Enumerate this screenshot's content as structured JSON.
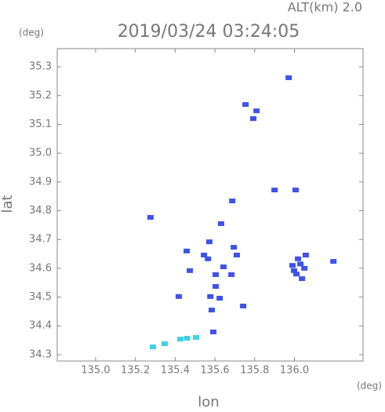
{
  "chart_data": {
    "type": "scatter",
    "title": "2019/03/24 03:24:05",
    "subtitle": "ALT(km) 2.0",
    "x_label": "lon",
    "y_label": "lat",
    "x_unit": "(deg)",
    "y_unit": "(deg)",
    "xlim": [
      134.807,
      136.345
    ],
    "ylim": [
      34.278,
      35.363
    ],
    "xticks": [
      {
        "value": 135,
        "label": "135.0"
      },
      135.2,
      135.4,
      135.6,
      135.8,
      {
        "value": 136,
        "label": "136.0"
      }
    ],
    "yticks": [
      34.3,
      34.4,
      34.5,
      34.6,
      34.7,
      34.8,
      34.9,
      {
        "value": 35,
        "label": "35.0"
      },
      35.1,
      35.2,
      35.3
    ],
    "series": [
      {
        "color": "#3d52e8",
        "x": [
          135.971,
          135.754,
          135.809,
          135.793,
          136.006,
          135.9,
          135.687,
          135.276,
          135.631,
          135.572,
          135.458,
          135.545,
          135.565,
          135.695,
          135.71,
          135.643,
          135.474,
          135.604,
          135.683,
          136.018,
          136.057,
          135.998,
          136.038,
          136.196,
          135.604,
          135.624,
          135.577,
          135.418,
          135.742,
          135.584,
          135.592,
          136.03,
          136.05,
          136.01,
          135.99
        ],
        "y": [
          35.262,
          35.169,
          35.147,
          35.12,
          34.872,
          34.872,
          34.834,
          34.777,
          34.755,
          34.692,
          34.66,
          34.646,
          34.633,
          34.673,
          34.646,
          34.605,
          34.592,
          34.578,
          34.578,
          34.633,
          34.646,
          34.592,
          34.564,
          34.624,
          34.537,
          34.496,
          34.502,
          34.502,
          34.469,
          34.455,
          34.379,
          34.615,
          34.6,
          34.58,
          34.61
        ]
      },
      {
        "color": "#3fd0e6",
        "x": [
          135.288,
          135.347,
          135.426,
          135.46,
          135.505
        ],
        "y": [
          34.327,
          34.338,
          34.354,
          34.357,
          34.36
        ]
      }
    ]
  }
}
